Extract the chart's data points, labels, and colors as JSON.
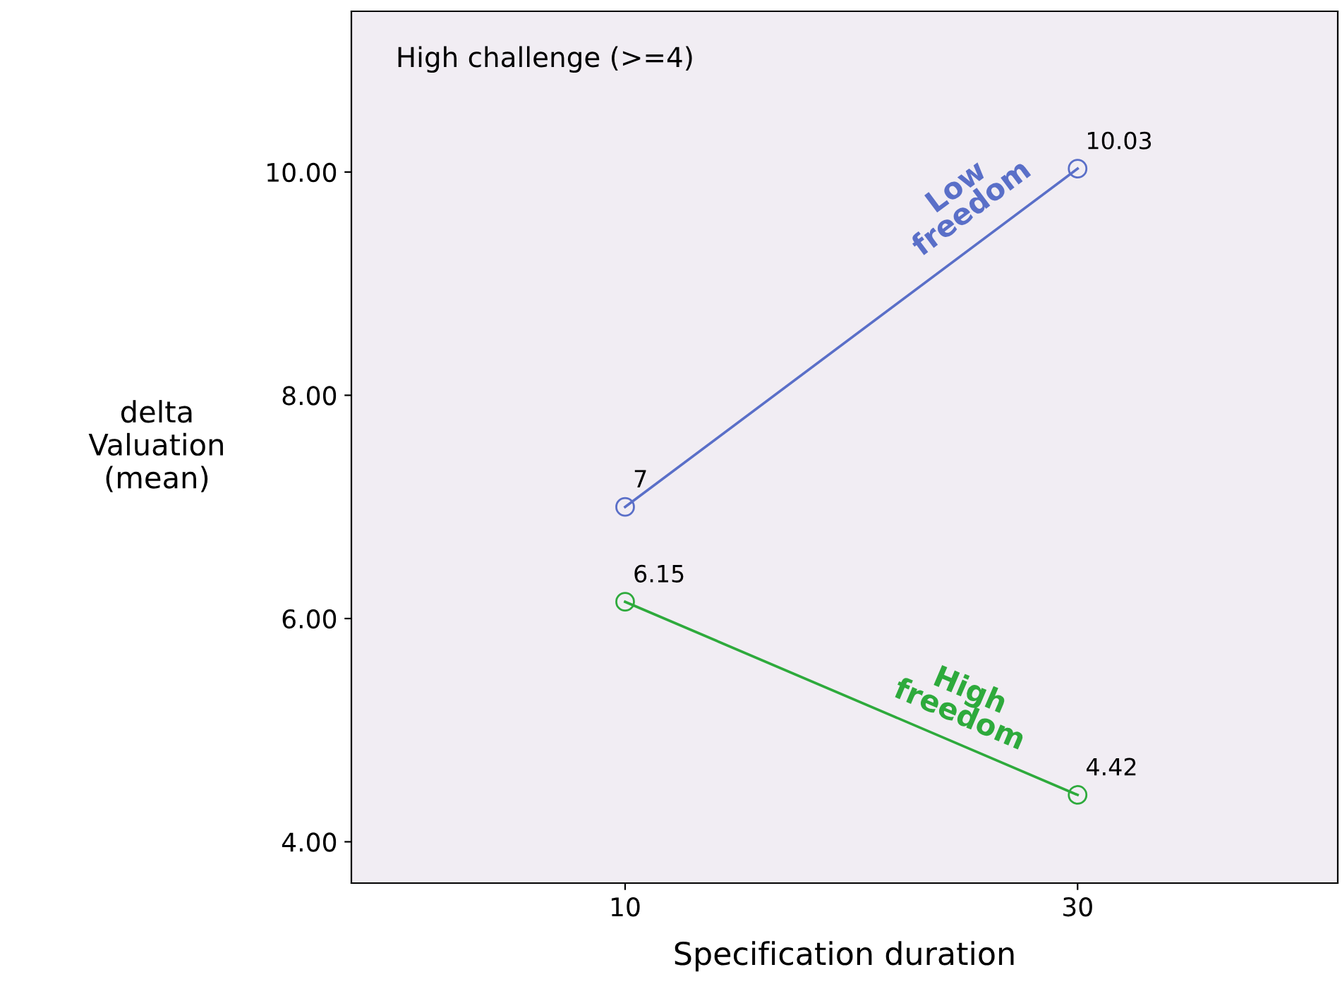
{
  "chart_data": {
    "type": "line",
    "xlabel": "Specification duration",
    "ylabel": "delta\nValuation\n(mean)",
    "annotations": [
      "High challenge (>=4)"
    ],
    "x": [
      10,
      30
    ],
    "series": [
      {
        "name": "Low\nfreedom",
        "color": "#5a6fc8",
        "values": [
          7,
          10.03
        ]
      },
      {
        "name": "High\nfreedom",
        "color": "#2eaa3c",
        "values": [
          6.15,
          4.42
        ]
      }
    ],
    "xlim": [
      -2.1,
      41.5
    ],
    "xticks": [
      10,
      30
    ],
    "ylim": [
      3.63,
      11.44
    ],
    "yticks": [
      {
        "value": 4,
        "label": "4.00"
      },
      {
        "value": 6,
        "label": "6.00"
      },
      {
        "value": 8,
        "label": "8.00"
      },
      {
        "value": 10,
        "label": "10.00"
      }
    ],
    "marker": "circle",
    "line_style": "solid",
    "grid": false,
    "legend": false,
    "data_labels": true
  }
}
